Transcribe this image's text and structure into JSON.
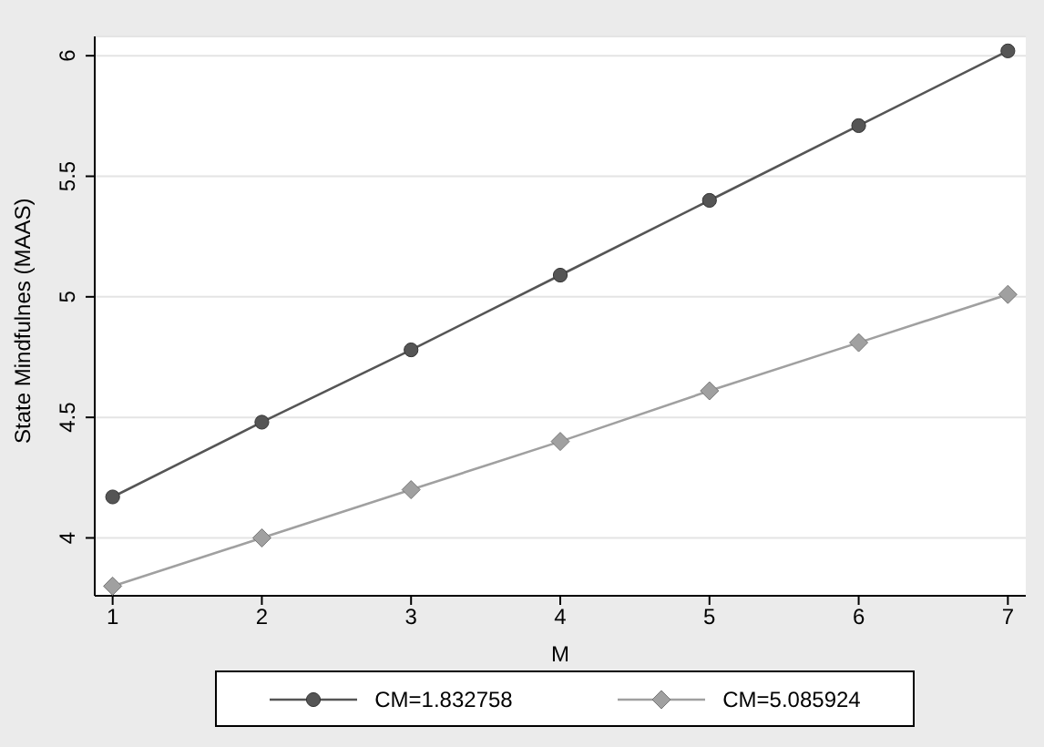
{
  "chart_data": {
    "type": "line",
    "xlabel": "M",
    "ylabel": "State Mindfulnes (MAAS)",
    "x": [
      1,
      2,
      3,
      4,
      5,
      6,
      7
    ],
    "series": [
      {
        "name": "CM=1.832758",
        "color": "#555555",
        "marker": "circle",
        "values": [
          4.17,
          4.48,
          4.78,
          5.09,
          5.4,
          5.71,
          6.02
        ]
      },
      {
        "name": "CM=5.085924",
        "color": "#a0a0a0",
        "marker": "diamond",
        "values": [
          3.8,
          4.0,
          4.2,
          4.4,
          4.61,
          4.81,
          5.01
        ]
      }
    ],
    "xlim": [
      0.88,
      7.12
    ],
    "xticks": [
      1,
      2,
      3,
      4,
      5,
      6,
      7
    ],
    "ylim": [
      3.76,
      6.08
    ],
    "yticks": [
      4,
      4.5,
      5,
      5.5,
      6
    ],
    "grid": "y",
    "legend": "bottom",
    "line_style": "solid"
  }
}
